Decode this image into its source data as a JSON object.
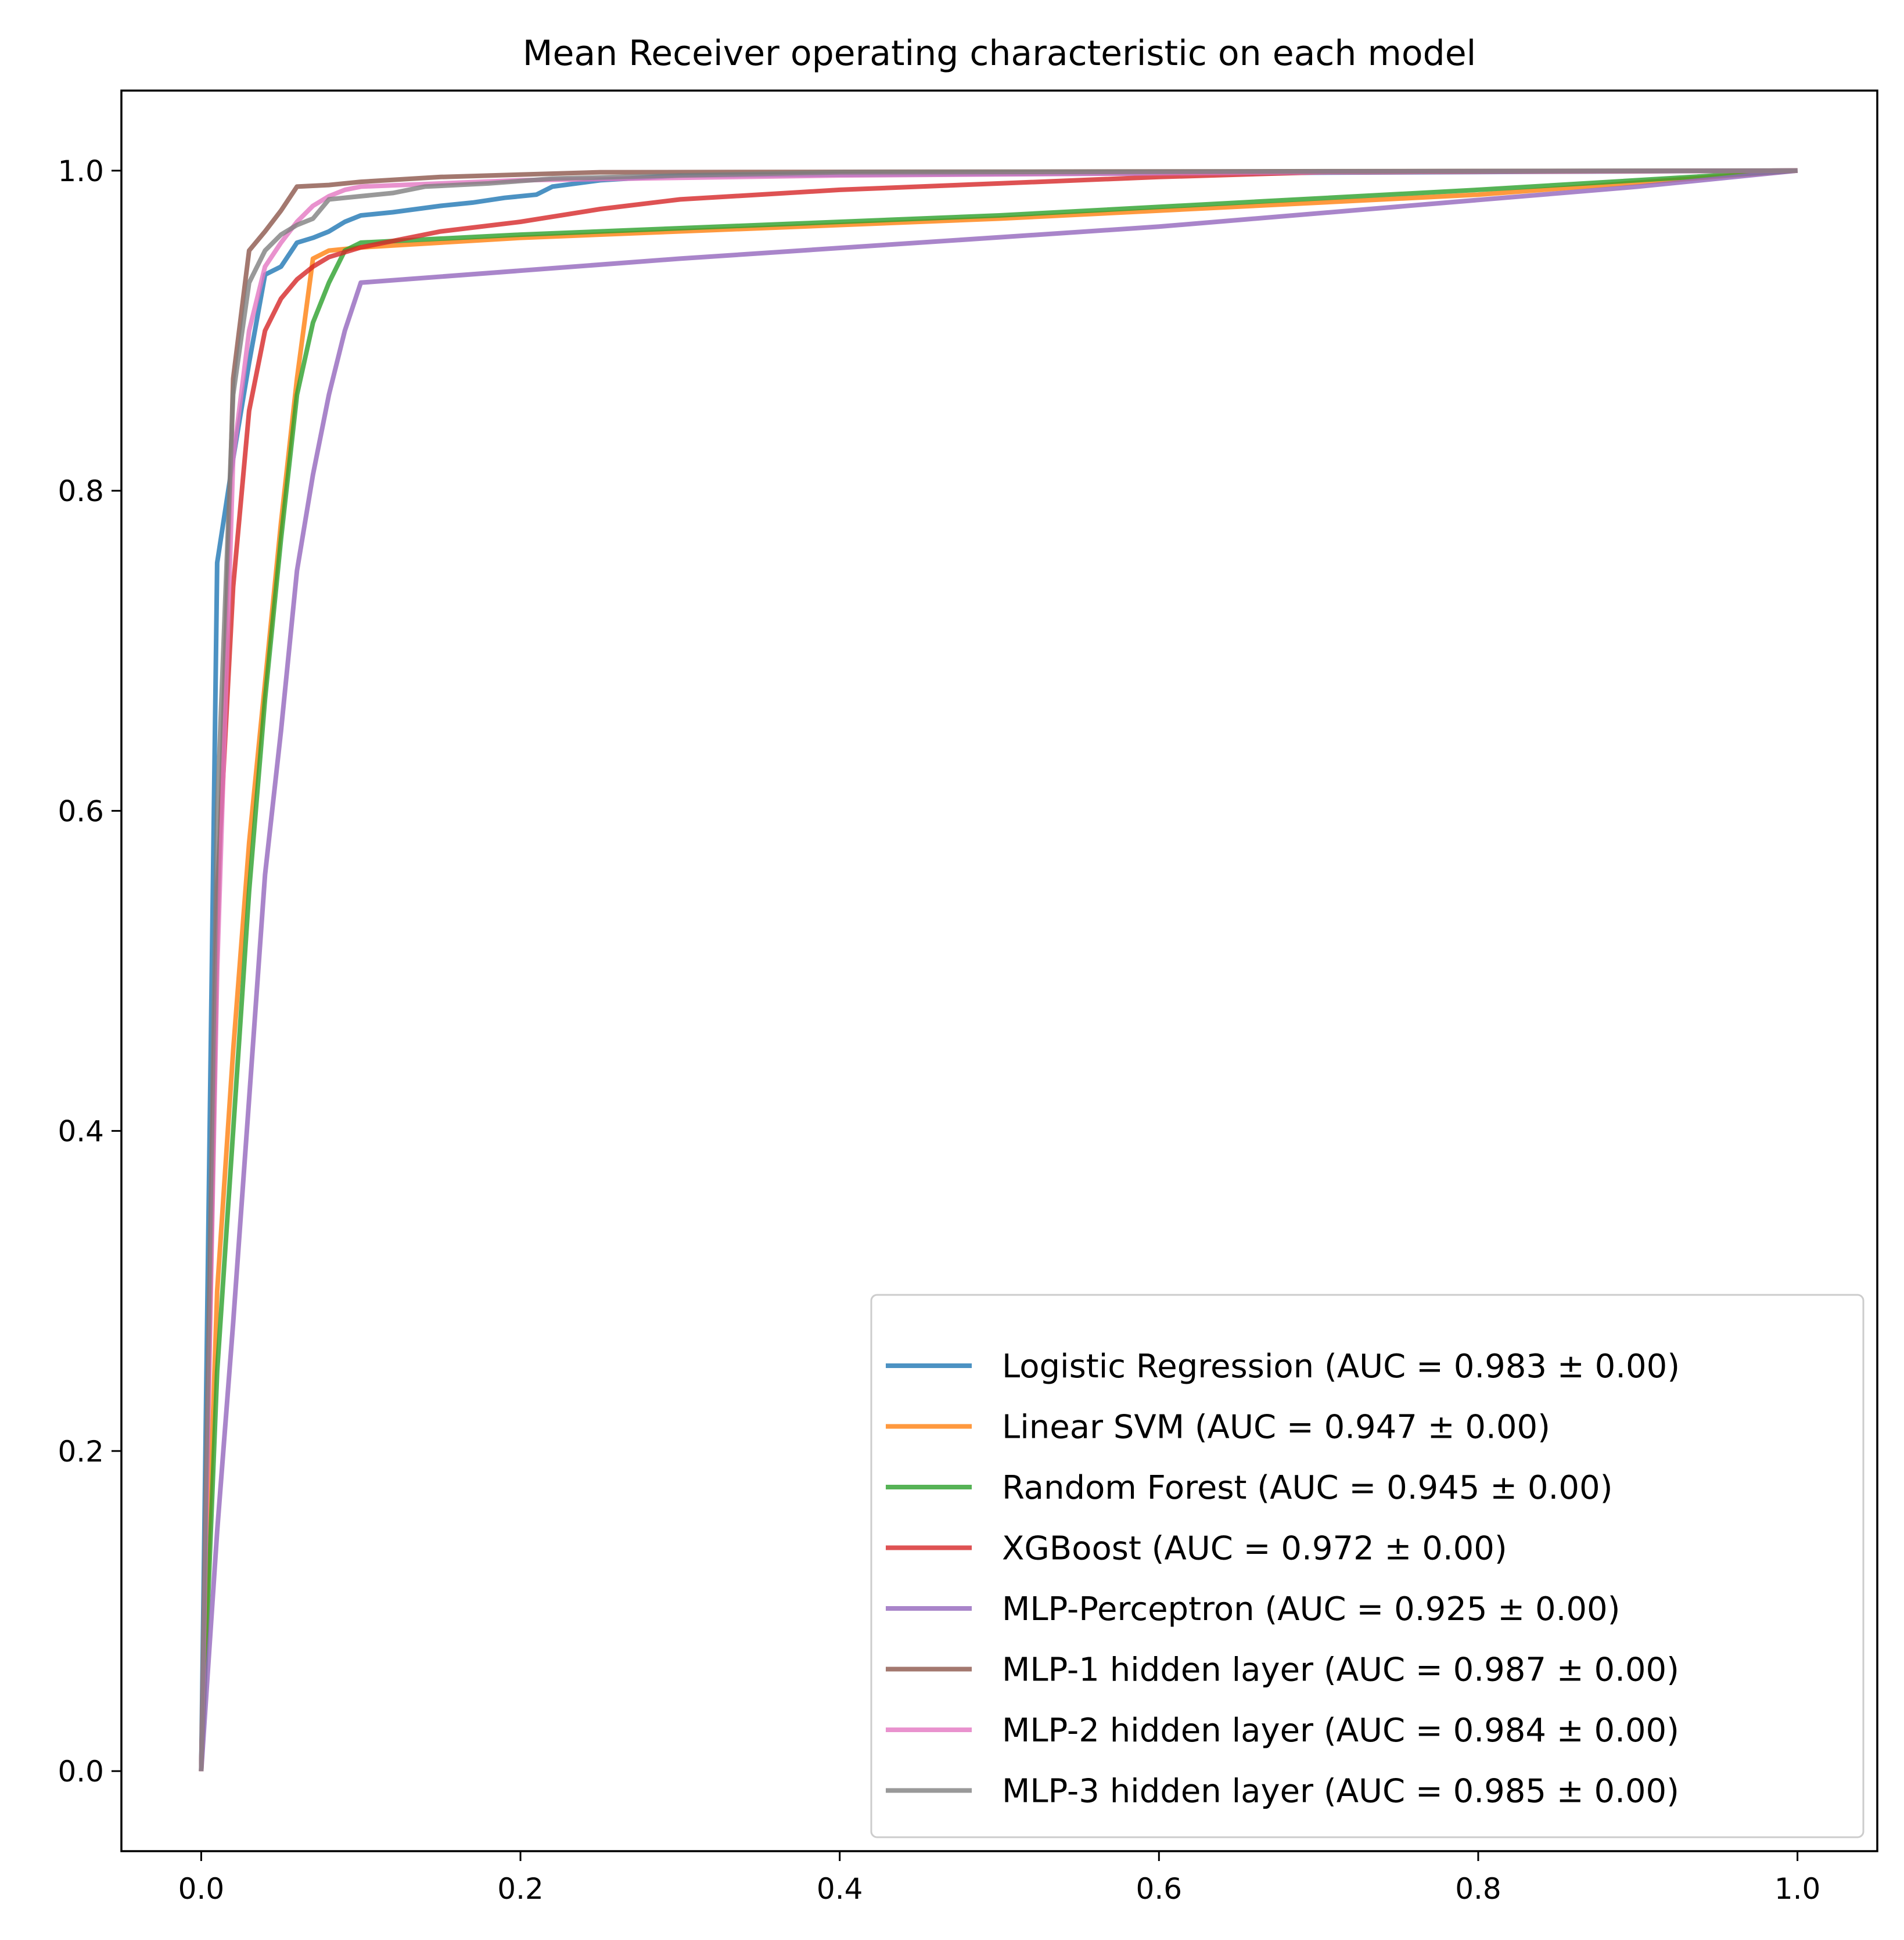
{
  "chart_data": {
    "type": "line",
    "title": "Mean Receiver operating characteristic on each model",
    "xlabel": "",
    "ylabel": "",
    "xlim": [
      -0.05,
      1.05
    ],
    "ylim": [
      -0.05,
      1.05
    ],
    "xticks": [
      "0.0",
      "0.2",
      "0.4",
      "0.6",
      "0.8",
      "1.0"
    ],
    "yticks": [
      "0.0",
      "0.2",
      "0.4",
      "0.6",
      "0.8",
      "1.0"
    ],
    "grid": false,
    "legend_position": "lower-right",
    "series": [
      {
        "name": "Logistic Regression (AUC = 0.983 ± 0.00)",
        "color": "#1f77b4",
        "x": [
          0,
          0.01,
          0.02,
          0.03,
          0.04,
          0.05,
          0.06,
          0.07,
          0.08,
          0.09,
          0.1,
          0.12,
          0.15,
          0.17,
          0.19,
          0.21,
          0.22,
          0.25,
          0.3,
          1.0
        ],
        "y": [
          0,
          0.755,
          0.82,
          0.88,
          0.935,
          0.94,
          0.955,
          0.958,
          0.962,
          0.968,
          0.972,
          0.974,
          0.978,
          0.98,
          0.983,
          0.985,
          0.99,
          0.994,
          0.997,
          1.0
        ]
      },
      {
        "name": "Linear SVM (AUC = 0.947 ± 0.00)",
        "color": "#ff7f0e",
        "x": [
          0,
          0.01,
          0.02,
          0.03,
          0.04,
          0.05,
          0.06,
          0.07,
          0.08,
          0.1,
          0.2,
          0.5,
          0.8,
          1.0
        ],
        "y": [
          0,
          0.3,
          0.45,
          0.58,
          0.68,
          0.78,
          0.87,
          0.945,
          0.95,
          0.952,
          0.958,
          0.97,
          0.985,
          1.0
        ]
      },
      {
        "name": "Random Forest (AUC = 0.945 ± 0.00)",
        "color": "#2ca02c",
        "x": [
          0,
          0.01,
          0.02,
          0.03,
          0.04,
          0.05,
          0.06,
          0.07,
          0.08,
          0.09,
          0.1,
          0.2,
          0.5,
          0.8,
          1.0
        ],
        "y": [
          0,
          0.25,
          0.4,
          0.55,
          0.67,
          0.77,
          0.86,
          0.905,
          0.93,
          0.95,
          0.955,
          0.96,
          0.972,
          0.988,
          1.0
        ]
      },
      {
        "name": "XGBoost (AUC = 0.972 ± 0.00)",
        "color": "#d62728",
        "x": [
          0,
          0.01,
          0.02,
          0.03,
          0.04,
          0.05,
          0.06,
          0.07,
          0.08,
          0.1,
          0.12,
          0.15,
          0.2,
          0.25,
          0.3,
          0.4,
          0.5,
          0.6,
          0.7,
          1.0
        ],
        "y": [
          0,
          0.55,
          0.74,
          0.85,
          0.9,
          0.92,
          0.932,
          0.94,
          0.946,
          0.952,
          0.956,
          0.962,
          0.968,
          0.976,
          0.982,
          0.988,
          0.992,
          0.996,
          0.999,
          1.0
        ]
      },
      {
        "name": "MLP-Perceptron (AUC = 0.925 ± 0.00)",
        "color": "#9467bd",
        "x": [
          0,
          0.01,
          0.02,
          0.03,
          0.04,
          0.05,
          0.06,
          0.07,
          0.08,
          0.09,
          0.1,
          0.3,
          0.6,
          0.9,
          1.0
        ],
        "y": [
          0,
          0.15,
          0.28,
          0.42,
          0.56,
          0.65,
          0.75,
          0.81,
          0.86,
          0.9,
          0.93,
          0.945,
          0.965,
          0.99,
          1.0
        ]
      },
      {
        "name": "MLP-1 hidden layer (AUC = 0.987 ± 0.00)",
        "color": "#8c564b",
        "x": [
          0,
          0.01,
          0.02,
          0.03,
          0.04,
          0.05,
          0.06,
          0.08,
          0.1,
          0.15,
          0.25,
          1.0
        ],
        "y": [
          0,
          0.52,
          0.87,
          0.95,
          0.962,
          0.975,
          0.99,
          0.991,
          0.993,
          0.996,
          0.999,
          1.0
        ]
      },
      {
        "name": "MLP-2 hidden layer (AUC = 0.984 ± 0.00)",
        "color": "#e377c2",
        "x": [
          0,
          0.01,
          0.02,
          0.03,
          0.04,
          0.05,
          0.06,
          0.07,
          0.08,
          0.09,
          0.1,
          0.2,
          0.4,
          0.7,
          1.0
        ],
        "y": [
          0,
          0.5,
          0.82,
          0.9,
          0.94,
          0.955,
          0.968,
          0.978,
          0.984,
          0.988,
          0.99,
          0.994,
          0.997,
          0.999,
          1.0
        ]
      },
      {
        "name": "MLP-3 hidden layer (AUC = 0.985 ± 0.00)",
        "color": "#7f7f7f",
        "x": [
          0,
          0.01,
          0.02,
          0.03,
          0.04,
          0.05,
          0.06,
          0.07,
          0.08,
          0.1,
          0.12,
          0.14,
          0.18,
          0.22,
          0.3,
          0.4,
          1.0
        ],
        "y": [
          0,
          0.6,
          0.86,
          0.93,
          0.95,
          0.96,
          0.966,
          0.97,
          0.982,
          0.984,
          0.986,
          0.99,
          0.992,
          0.995,
          0.997,
          0.999,
          1.0
        ]
      }
    ]
  }
}
